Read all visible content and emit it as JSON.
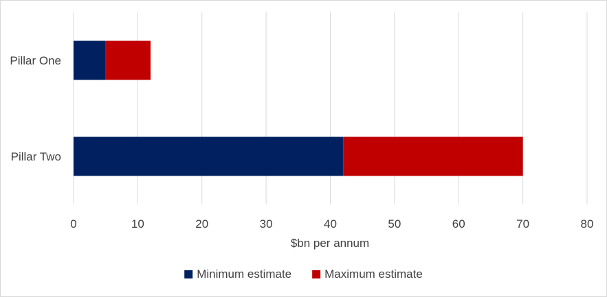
{
  "chart_data": {
    "type": "bar",
    "orientation": "horizontal",
    "stacked": true,
    "categories": [
      "Pillar One",
      "Pillar Two"
    ],
    "series": [
      {
        "name": "Minimum estimate",
        "values": [
          5,
          42
        ],
        "color": "#002060"
      },
      {
        "name": "Maximum estimate",
        "values": [
          7,
          28
        ],
        "color": "#C00000"
      }
    ],
    "xlabel": "$bn per annum",
    "ylabel": "",
    "xlim": [
      0,
      80
    ],
    "xticks": [
      "0",
      "10",
      "20",
      "30",
      "40",
      "50",
      "60",
      "70",
      "80"
    ],
    "grid": "vertical",
    "legend_position": "bottom"
  }
}
